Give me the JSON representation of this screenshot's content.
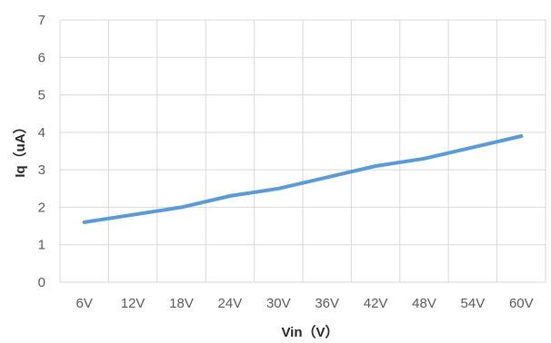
{
  "chart_data": {
    "type": "line",
    "title": "",
    "xlabel": "Vin（V）",
    "ylabel": "Iq（uA）",
    "categories": [
      "6V",
      "12V",
      "18V",
      "24V",
      "30V",
      "36V",
      "42V",
      "48V",
      "54V",
      "60V"
    ],
    "series": [
      {
        "values": [
          1.6,
          1.8,
          2.0,
          2.3,
          2.5,
          2.8,
          3.1,
          3.3,
          3.6,
          3.9
        ]
      }
    ],
    "ylim": [
      0,
      7
    ],
    "yticks": [
      0,
      1,
      2,
      3,
      4,
      5,
      6,
      7
    ],
    "grid": true,
    "legend": "none",
    "line_color": "#5b9bd5",
    "grid_color": "#d9d9d9"
  }
}
